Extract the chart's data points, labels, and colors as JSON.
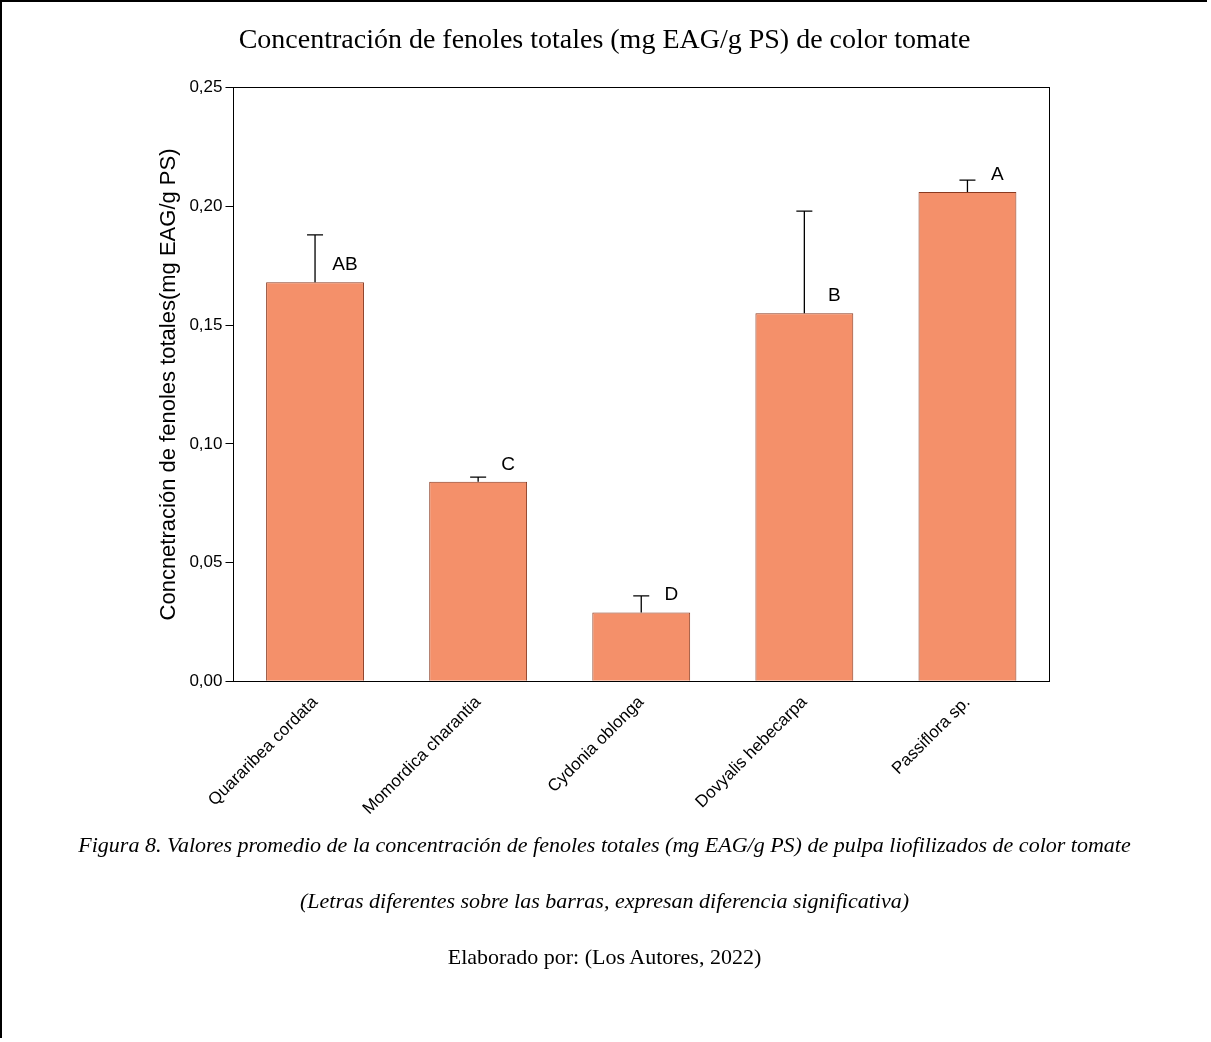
{
  "chart_data": {
    "type": "bar",
    "title": "Concentración de fenoles totales (mg EAG/g PS) de color tomate",
    "ylabel": "Concnetración de fenoles totales(mg EAG/g PS)",
    "categories": [
      "Quararibea cordata",
      "Momordica charantia",
      "Cydonia oblonga",
      "Dovyalis hebecarpa",
      "Passiflora sp."
    ],
    "values": [
      0.168,
      0.084,
      0.029,
      0.155,
      0.206
    ],
    "errors": [
      [
        0.168,
        0.188
      ],
      [
        0.084,
        0.086
      ],
      [
        0.029,
        0.036
      ],
      [
        0.155,
        0.198
      ],
      [
        0.206,
        0.211
      ]
    ],
    "color": "#f4906a",
    "ylim": [
      0,
      0.25
    ],
    "yticks": [
      {
        "value": 0,
        "label": "0,00"
      },
      {
        "value": 0.05,
        "label": "0,05"
      },
      {
        "value": 0.1,
        "label": "0,10"
      },
      {
        "value": 0.15,
        "label": "0,15"
      },
      {
        "value": 0.2,
        "label": "0,20"
      },
      {
        "value": 0.25,
        "label": "0,25"
      }
    ],
    "grid": false,
    "legend": false,
    "annotations": [
      {
        "text": "AB",
        "x": "Quararibea cordata",
        "y": 0.168
      },
      {
        "text": "C",
        "x": "Momordica charantia",
        "y": 0.084
      },
      {
        "text": "D",
        "x": "Cydonia oblonga",
        "y": 0.029
      },
      {
        "text": "B",
        "x": "Dovyalis hebecarpa",
        "y": 0.155
      },
      {
        "text": "A",
        "x": "Passiflora sp.",
        "y": 0.206
      },
      "Figura 8. Valores promedio de la concentración de fenoles totales (mg EAG/g PS) de pulpa liofilizados de color tomate",
      "(Letras diferentes sobre las barras, expresan diferencia significativa)",
      "Elaborado por: (Los Autores, 2022)"
    ]
  }
}
